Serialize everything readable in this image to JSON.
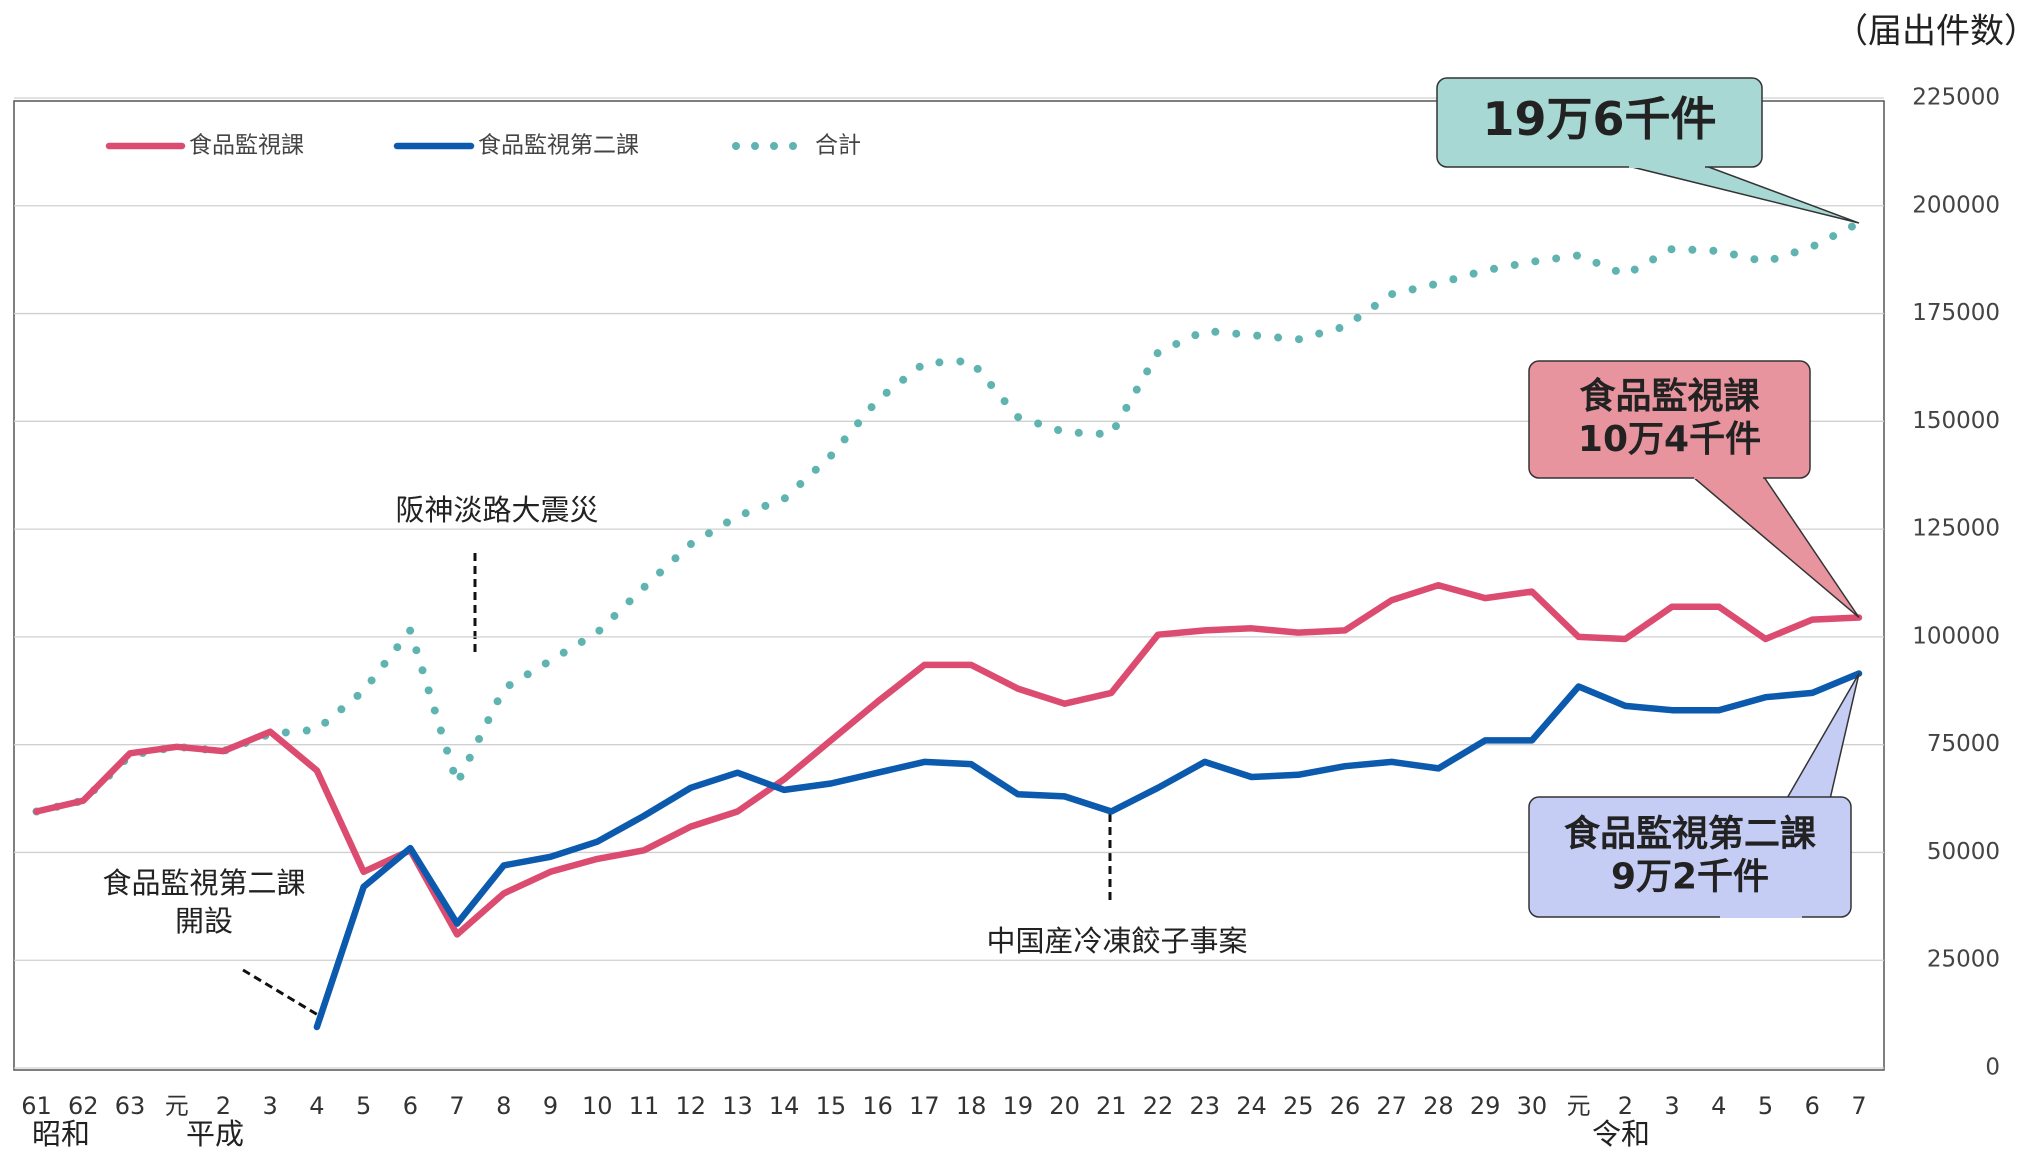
{
  "chart_data": {
    "type": "line",
    "unit_label": "（届出件数）",
    "categories": [
      "61",
      "62",
      "63",
      "元",
      "2",
      "3",
      "4",
      "5",
      "6",
      "7",
      "8",
      "9",
      "10",
      "11",
      "12",
      "13",
      "14",
      "15",
      "16",
      "17",
      "18",
      "19",
      "20",
      "21",
      "22",
      "23",
      "24",
      "25",
      "26",
      "27",
      "28",
      "29",
      "30",
      "元",
      "2",
      "3",
      "4",
      "5",
      "6",
      "7"
    ],
    "eras": [
      "昭和",
      "平成",
      "令和"
    ],
    "series": [
      {
        "name": "食品監視課",
        "color": "#dc4c70",
        "style": "solid",
        "values": [
          59500,
          62000,
          73000,
          74500,
          73500,
          78000,
          69000,
          45500,
          50500,
          31000,
          40500,
          45500,
          48500,
          50500,
          56000,
          59500,
          67000,
          76000,
          85000,
          93500,
          93500,
          88000,
          84500,
          87000,
          100500,
          101500,
          102000,
          101000,
          101500,
          108500,
          112000,
          109000,
          110500,
          100000,
          99500,
          107000,
          107000,
          99500,
          104000,
          104500
        ]
      },
      {
        "name": "食品監視第二課",
        "color": "#0b5aad",
        "style": "solid",
        "values": [
          null,
          null,
          null,
          null,
          null,
          null,
          9500,
          42000,
          51000,
          33500,
          47000,
          49000,
          52500,
          58500,
          65000,
          68500,
          64500,
          66000,
          68500,
          71000,
          70500,
          63500,
          63000,
          59500,
          65000,
          71000,
          67500,
          68000,
          70000,
          71000,
          69500,
          76000,
          76000,
          88500,
          84000,
          83000,
          83000,
          86000,
          87000,
          91500
        ]
      },
      {
        "name": "合計",
        "color": "#5fb3b0",
        "style": "dotted",
        "values": [
          59500,
          62000,
          72500,
          74500,
          73500,
          77500,
          78500,
          87500,
          101500,
          66000,
          88000,
          94500,
          101000,
          111500,
          121500,
          128000,
          132000,
          142000,
          155000,
          163500,
          164000,
          151000,
          147500,
          147000,
          166000,
          171000,
          170000,
          169000,
          172000,
          179500,
          182000,
          185000,
          187000,
          188500,
          184000,
          190000,
          189500,
          187000,
          190500,
          196000
        ]
      }
    ],
    "ylim": [
      0,
      225000
    ],
    "yticks": [
      0,
      25000,
      50000,
      75000,
      100000,
      125000,
      150000,
      175000,
      200000,
      225000
    ],
    "grid": true,
    "legend": "top-left",
    "annotations": {
      "events": [
        {
          "lines": [
            "阪神淡路大震災"
          ]
        },
        {
          "lines": [
            "食品監視第二課",
            "開設"
          ]
        },
        {
          "lines": [
            "中国産冷凍餃子事案"
          ]
        }
      ],
      "callouts": [
        {
          "lines": [
            "19万6千件"
          ],
          "color": "#a8d8d4"
        },
        {
          "lines": [
            "食品監視課",
            "10万4千件"
          ],
          "color": "#e8949f"
        },
        {
          "lines": [
            "食品監視第二課",
            "9万2千件"
          ],
          "color": "#c5cdf5"
        }
      ]
    }
  }
}
